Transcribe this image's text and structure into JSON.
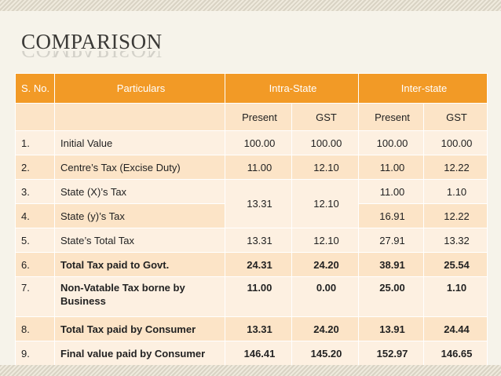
{
  "title": "COMPARISON",
  "table": {
    "headers": {
      "sno": "S. No.",
      "particulars": "Particulars",
      "intra": "Intra-State",
      "inter": "Inter-state"
    },
    "subheaders": [
      "Present",
      "GST",
      "Present",
      "GST"
    ],
    "rows": [
      {
        "sno": "1.",
        "particular": "Initial Value",
        "intra_present": "100.00",
        "intra_gst": "100.00",
        "inter_present": "100.00",
        "inter_gst": "100.00"
      },
      {
        "sno": "2.",
        "particular": "Centre’s Tax (Excise Duty)",
        "intra_present": "11.00",
        "intra_gst": "12.10",
        "inter_present": "11.00",
        "inter_gst": "12.22"
      },
      {
        "sno": "3.",
        "particular": "State (X)’s Tax",
        "intra_present": "13.31",
        "intra_gst": "12.10",
        "inter_present": "11.00",
        "inter_gst": "1.10"
      },
      {
        "sno": "4.",
        "particular": "State (y)’s Tax",
        "inter_present": "16.91",
        "inter_gst": "12.22"
      },
      {
        "sno": "5.",
        "particular": "State’s Total Tax",
        "intra_present": "13.31",
        "intra_gst": "12.10",
        "inter_present": "27.91",
        "inter_gst": "13.32"
      },
      {
        "sno": "6.",
        "particular": "Total Tax paid to Govt.",
        "intra_present": "24.31",
        "intra_gst": "24.20",
        "inter_present": "38.91",
        "inter_gst": "25.54"
      },
      {
        "sno": "7.",
        "particular": "Non-Vatable Tax borne by Business",
        "intra_present": "11.00",
        "intra_gst": "0.00",
        "inter_present": "25.00",
        "inter_gst": "1.10"
      },
      {
        "sno": "8.",
        "particular": "Total Tax paid by Consumer",
        "intra_present": "13.31",
        "intra_gst": "24.20",
        "inter_present": "13.91",
        "inter_gst": "24.44"
      },
      {
        "sno": "9.",
        "particular": "Final value paid by Consumer",
        "intra_present": "146.41",
        "intra_gst": "145.20",
        "inter_present": "152.97",
        "inter_gst": "146.65"
      }
    ]
  }
}
